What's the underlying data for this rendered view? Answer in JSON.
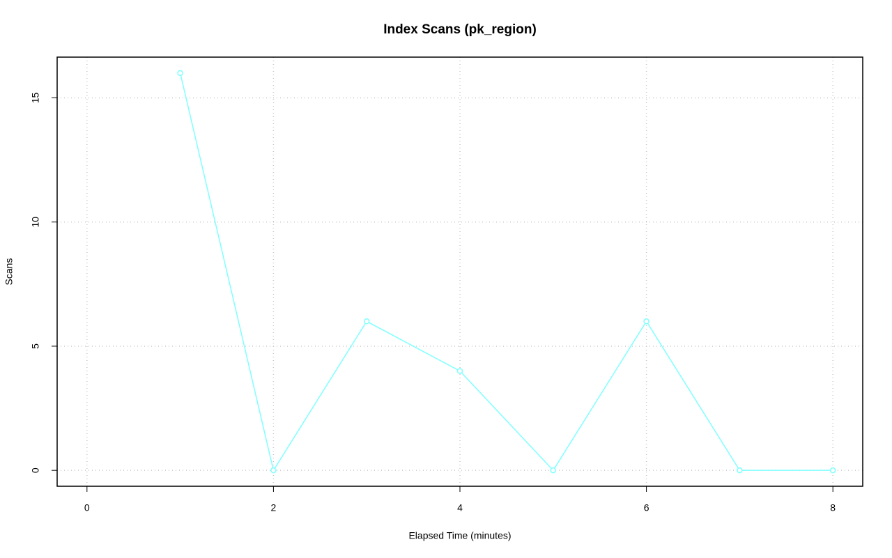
{
  "chart_data": {
    "type": "line",
    "title": "Index Scans (pk_region)",
    "x_label": "Elapsed Time (minutes)",
    "y_label": "Scans",
    "x": [
      1,
      2,
      3,
      4,
      5,
      6,
      7,
      8
    ],
    "series": [
      {
        "name": "pk_region",
        "color": "#80ffff",
        "values": [
          16,
          0,
          6,
          4,
          0,
          6,
          0,
          0
        ]
      }
    ],
    "xlim": [
      -0.32,
      8.32
    ],
    "xticks": [
      0,
      2,
      4,
      6,
      8
    ],
    "ylim": [
      -0.64,
      16.64
    ],
    "yticks": [
      0,
      5,
      10,
      15
    ],
    "grid": true,
    "legend": false
  }
}
